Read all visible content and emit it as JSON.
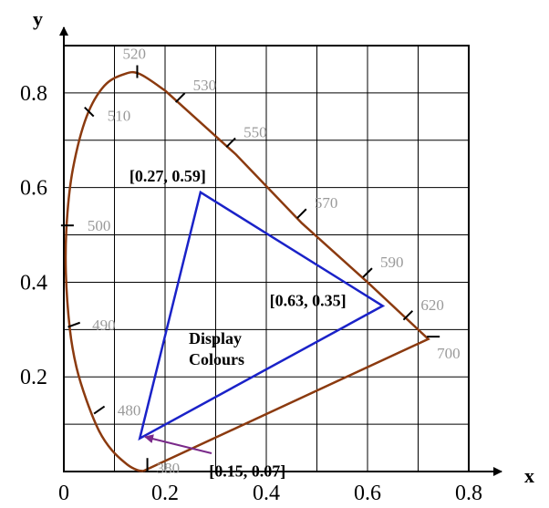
{
  "chart_data": {
    "type": "diagram",
    "xlabel": "x",
    "ylabel": "y",
    "xlim": [
      0,
      0.8
    ],
    "ylim": [
      0,
      0.9
    ],
    "x_ticks": [
      "0",
      "0.2",
      "0.4",
      "0.6",
      "0.8"
    ],
    "y_ticks": [
      "0.2",
      "0.4",
      "0.6",
      "0.8"
    ],
    "grid": true,
    "colors": {
      "spectral_locus": "#8b3a0f",
      "display_gamut": "#1a22c8",
      "pointer_arrow": "#7a2a8a",
      "wavelength_labels": "#9a9a9a"
    },
    "spectral_locus": [
      {
        "x": 0.157,
        "y": 0.001
      },
      {
        "x": 0.145,
        "y": 0.003
      },
      {
        "x": 0.125,
        "y": 0.015
      },
      {
        "x": 0.095,
        "y": 0.045
      },
      {
        "x": 0.07,
        "y": 0.085
      },
      {
        "x": 0.045,
        "y": 0.15
      },
      {
        "x": 0.025,
        "y": 0.22
      },
      {
        "x": 0.012,
        "y": 0.3
      },
      {
        "x": 0.004,
        "y": 0.42
      },
      {
        "x": 0.006,
        "y": 0.53
      },
      {
        "x": 0.018,
        "y": 0.64
      },
      {
        "x": 0.045,
        "y": 0.75
      },
      {
        "x": 0.08,
        "y": 0.815
      },
      {
        "x": 0.12,
        "y": 0.84
      },
      {
        "x": 0.15,
        "y": 0.84
      },
      {
        "x": 0.2,
        "y": 0.805
      },
      {
        "x": 0.34,
        "y": 0.67
      },
      {
        "x": 0.47,
        "y": 0.525
      },
      {
        "x": 0.6,
        "y": 0.4
      },
      {
        "x": 0.72,
        "y": 0.28
      },
      {
        "x": 0.157,
        "y": 0.001
      }
    ],
    "wavelength_marks": [
      {
        "label": "520",
        "x": 0.145,
        "y": 0.845,
        "tick_angle": 90
      },
      {
        "label": "530",
        "x": 0.23,
        "y": 0.79,
        "tick_angle": 45
      },
      {
        "label": "550",
        "x": 0.33,
        "y": 0.695,
        "tick_angle": 45
      },
      {
        "label": "570",
        "x": 0.47,
        "y": 0.545,
        "tick_angle": 45
      },
      {
        "label": "590",
        "x": 0.6,
        "y": 0.42,
        "tick_angle": 45
      },
      {
        "label": "620",
        "x": 0.68,
        "y": 0.33,
        "tick_angle": 45
      },
      {
        "label": "700",
        "x": 0.73,
        "y": 0.285,
        "tick_angle": 0
      },
      {
        "label": "510",
        "x": 0.05,
        "y": 0.76,
        "tick_angle": 135
      },
      {
        "label": "500",
        "x": 0.007,
        "y": 0.52,
        "tick_angle": 0
      },
      {
        "label": "490",
        "x": 0.02,
        "y": 0.31,
        "tick_angle": 20
      },
      {
        "label": "480",
        "x": 0.07,
        "y": 0.13,
        "tick_angle": 35
      },
      {
        "label": "380",
        "x": 0.165,
        "y": 0.015,
        "tick_angle": 90
      }
    ],
    "display_gamut": {
      "label_line1": "Display",
      "label_line2": "Colours",
      "vertices": [
        {
          "label": "[0.27, 0.59]",
          "x": 0.27,
          "y": 0.59
        },
        {
          "label": "[0.63, 0.35]",
          "x": 0.63,
          "y": 0.35
        },
        {
          "label": "[0.15, 0.07]",
          "x": 0.15,
          "y": 0.07
        }
      ]
    }
  }
}
